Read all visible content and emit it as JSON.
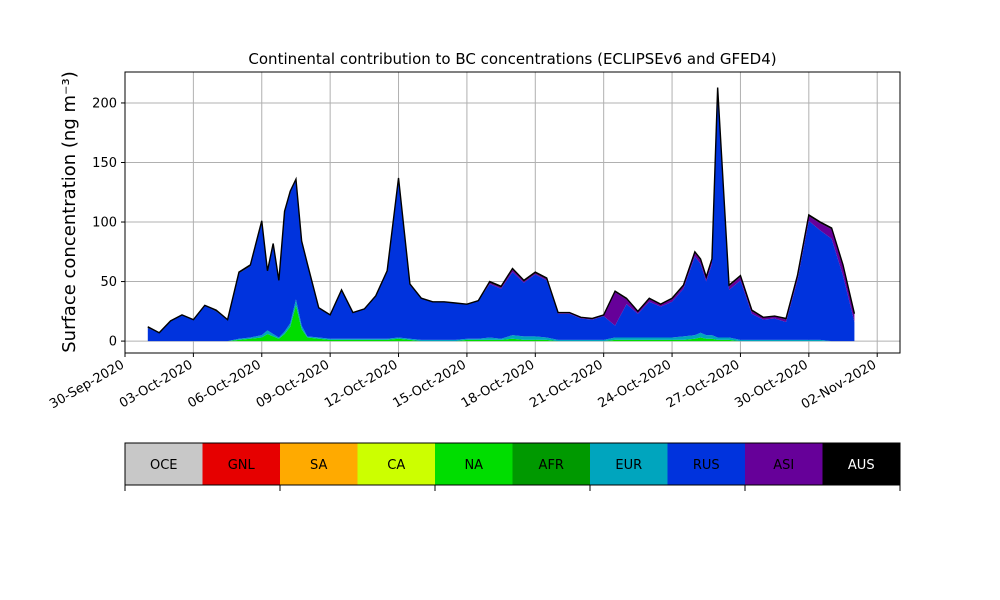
{
  "chart_data": {
    "type": "area",
    "title": "Continental contribution to BC concentrations (ECLIPSEv6 and GFED4)",
    "xlabel": "",
    "ylabel": "Surface concentration (ng m⁻³)",
    "xlim": [
      "2020-09-30",
      "2020-11-03"
    ],
    "ylim": [
      -10,
      226
    ],
    "grid": true,
    "x_ticks": [
      "30-Sep-2020",
      "03-Oct-2020",
      "06-Oct-2020",
      "09-Oct-2020",
      "12-Oct-2020",
      "15-Oct-2020",
      "18-Oct-2020",
      "21-Oct-2020",
      "24-Oct-2020",
      "27-Oct-2020",
      "30-Oct-2020",
      "02-Nov-2020"
    ],
    "y_ticks": [
      0,
      50,
      100,
      150,
      200
    ],
    "legend": {
      "placement": "bottom colorbar",
      "entries": [
        {
          "name": "OCE",
          "color": "#c8c8c8"
        },
        {
          "name": "GNL",
          "color": "#e60000"
        },
        {
          "name": "SA",
          "color": "#ffaa00"
        },
        {
          "name": "CA",
          "color": "#ccff00"
        },
        {
          "name": "NA",
          "color": "#00dd00"
        },
        {
          "name": "AFR",
          "color": "#009900"
        },
        {
          "name": "EUR",
          "color": "#00a5be"
        },
        {
          "name": "RUS",
          "color": "#0033dd"
        },
        {
          "name": "ASI",
          "color": "#660099"
        },
        {
          "name": "AUS",
          "color": "#000000"
        }
      ]
    },
    "x": [
      "2020-10-01",
      "2020-10-01T12",
      "2020-10-02",
      "2020-10-02T12",
      "2020-10-03",
      "2020-10-03T12",
      "2020-10-04",
      "2020-10-04T12",
      "2020-10-05",
      "2020-10-05T12",
      "2020-10-06",
      "2020-10-06T06",
      "2020-10-06T12",
      "2020-10-06T18",
      "2020-10-07",
      "2020-10-07T06",
      "2020-10-07T12",
      "2020-10-07T18",
      "2020-10-08",
      "2020-10-08T12",
      "2020-10-09",
      "2020-10-09T12",
      "2020-10-10",
      "2020-10-10T12",
      "2020-10-11",
      "2020-10-11T12",
      "2020-10-12",
      "2020-10-12T12",
      "2020-10-13",
      "2020-10-13T12",
      "2020-10-14",
      "2020-10-14T12",
      "2020-10-15",
      "2020-10-15T12",
      "2020-10-16",
      "2020-10-16T12",
      "2020-10-17",
      "2020-10-17T12",
      "2020-10-18",
      "2020-10-18T12",
      "2020-10-19",
      "2020-10-19T12",
      "2020-10-20",
      "2020-10-20T12",
      "2020-10-21",
      "2020-10-21T12",
      "2020-10-22",
      "2020-10-22T12",
      "2020-10-23",
      "2020-10-23T12",
      "2020-10-24",
      "2020-10-24T12",
      "2020-10-25",
      "2020-10-25T06",
      "2020-10-25T12",
      "2020-10-25T18",
      "2020-10-26",
      "2020-10-26T12",
      "2020-10-27",
      "2020-10-27T12",
      "2020-10-28",
      "2020-10-28T12",
      "2020-10-29",
      "2020-10-29T12",
      "2020-10-30",
      "2020-10-30T12",
      "2020-10-31",
      "2020-10-31T12",
      "2020-11-01"
    ],
    "series": [
      {
        "name": "NA",
        "values": [
          0,
          0,
          0,
          0,
          0,
          0,
          0,
          0,
          1,
          2,
          3,
          6,
          4,
          2,
          6,
          12,
          30,
          10,
          3,
          2,
          1,
          1,
          1,
          1,
          1,
          1,
          2,
          1,
          0,
          0,
          0,
          0,
          1,
          1,
          1,
          1,
          2,
          1,
          1,
          1,
          0,
          0,
          0,
          0,
          0,
          1,
          1,
          1,
          1,
          1,
          1,
          1,
          2,
          3,
          2,
          2,
          1,
          1,
          0,
          0,
          0,
          0,
          0,
          0,
          0,
          0,
          0,
          0,
          0
        ]
      },
      {
        "name": "EUR",
        "values": [
          0,
          0,
          0,
          0,
          0,
          0,
          0,
          0,
          1,
          1,
          2,
          3,
          2,
          1,
          2,
          3,
          5,
          3,
          1,
          1,
          1,
          1,
          1,
          1,
          1,
          1,
          1,
          1,
          1,
          1,
          1,
          1,
          1,
          1,
          2,
          1,
          3,
          3,
          3,
          2,
          1,
          1,
          1,
          1,
          1,
          2,
          2,
          2,
          2,
          2,
          2,
          3,
          3,
          4,
          3,
          3,
          2,
          2,
          1,
          1,
          1,
          1,
          1,
          1,
          1,
          1,
          0,
          0,
          0
        ]
      },
      {
        "name": "RUS",
        "values": [
          11,
          7,
          17,
          22,
          18,
          30,
          25,
          18,
          55,
          60,
          95,
          50,
          75,
          48,
          100,
          110,
          100,
          70,
          60,
          25,
          20,
          40,
          22,
          25,
          35,
          56,
          133,
          45,
          35,
          32,
          32,
          31,
          29,
          32,
          45,
          42,
          53,
          45,
          52,
          48,
          22,
          22,
          18,
          17,
          20,
          10,
          28,
          20,
          30,
          26,
          30,
          40,
          66,
          58,
          45,
          60,
          205,
          40,
          50,
          22,
          17,
          18,
          15,
          50,
          100,
          92,
          86,
          55,
          16
        ]
      },
      {
        "name": "ASI",
        "values": [
          0,
          0,
          0,
          0,
          0,
          0,
          0,
          0,
          0,
          0,
          0,
          0,
          0,
          0,
          0,
          0,
          0,
          0,
          0,
          0,
          0,
          0,
          0,
          0,
          0,
          0,
          0,
          0,
          0,
          0,
          0,
          0,
          0,
          0,
          1,
          1,
          2,
          1,
          1,
          1,
          1,
          1,
          1,
          1,
          1,
          28,
          4,
          2,
          2,
          2,
          2,
          2,
          3,
          3,
          3,
          3,
          3,
          3,
          3,
          2,
          2,
          2,
          2,
          3,
          4,
          6,
          8,
          8,
          6
        ]
      },
      {
        "name": "AUS",
        "values": [
          1,
          0,
          0,
          0,
          0,
          0,
          1,
          0,
          1,
          1,
          1,
          0,
          1,
          0,
          1,
          1,
          1,
          1,
          1,
          0,
          0,
          1,
          0,
          0,
          1,
          1,
          1,
          1,
          0,
          0,
          0,
          0,
          0,
          0,
          1,
          1,
          1,
          1,
          1,
          1,
          0,
          0,
          0,
          0,
          0,
          1,
          1,
          0,
          1,
          0,
          1,
          1,
          1,
          1,
          1,
          1,
          2,
          1,
          1,
          1,
          0,
          0,
          1,
          1,
          1,
          1,
          1,
          1,
          1
        ]
      }
    ]
  }
}
